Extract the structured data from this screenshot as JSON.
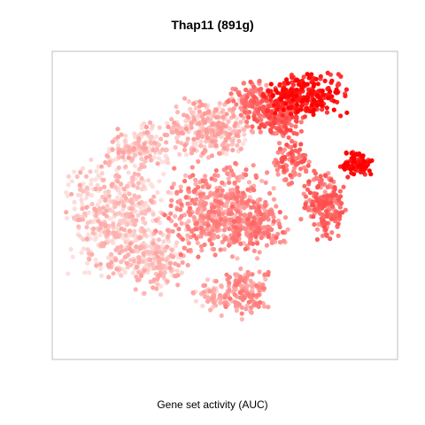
{
  "chart_data": {
    "type": "scatter",
    "title": "Thap11 (891g)",
    "xlabel": "Gene set activity (AUC)",
    "ylabel": "",
    "axes_visible": false,
    "grid": false,
    "legend": "none",
    "color_scale": {
      "low": "#fde0dd",
      "high": "#ff0000"
    },
    "clusters": [
      {
        "cx": 0.17,
        "cy": 0.55,
        "rx": 0.15,
        "ry": 0.19,
        "n": 520,
        "level": 0.08
      },
      {
        "cx": 0.3,
        "cy": 0.7,
        "rx": 0.09,
        "ry": 0.1,
        "n": 160,
        "level": 0.12
      },
      {
        "cx": 0.45,
        "cy": 0.24,
        "rx": 0.13,
        "ry": 0.1,
        "n": 300,
        "level": 0.15
      },
      {
        "cx": 0.48,
        "cy": 0.52,
        "rx": 0.16,
        "ry": 0.15,
        "n": 480,
        "level": 0.32
      },
      {
        "cx": 0.6,
        "cy": 0.57,
        "rx": 0.08,
        "ry": 0.08,
        "n": 150,
        "level": 0.38
      },
      {
        "cx": 0.56,
        "cy": 0.8,
        "rx": 0.07,
        "ry": 0.08,
        "n": 140,
        "level": 0.3
      },
      {
        "cx": 0.46,
        "cy": 0.81,
        "rx": 0.06,
        "ry": 0.05,
        "n": 60,
        "level": 0.18
      },
      {
        "cx": 0.74,
        "cy": 0.12,
        "rx": 0.12,
        "ry": 0.07,
        "n": 260,
        "level": 0.85
      },
      {
        "cx": 0.65,
        "cy": 0.2,
        "rx": 0.08,
        "ry": 0.06,
        "n": 160,
        "level": 0.55
      },
      {
        "cx": 0.58,
        "cy": 0.13,
        "rx": 0.06,
        "ry": 0.06,
        "n": 100,
        "level": 0.45
      },
      {
        "cx": 0.7,
        "cy": 0.35,
        "rx": 0.05,
        "ry": 0.08,
        "n": 90,
        "level": 0.5
      },
      {
        "cx": 0.8,
        "cy": 0.5,
        "rx": 0.06,
        "ry": 0.11,
        "n": 200,
        "level": 0.48
      },
      {
        "cx": 0.9,
        "cy": 0.36,
        "rx": 0.05,
        "ry": 0.04,
        "n": 100,
        "level": 0.9
      },
      {
        "cx": 0.24,
        "cy": 0.3,
        "rx": 0.1,
        "ry": 0.08,
        "n": 140,
        "level": 0.12
      }
    ]
  }
}
